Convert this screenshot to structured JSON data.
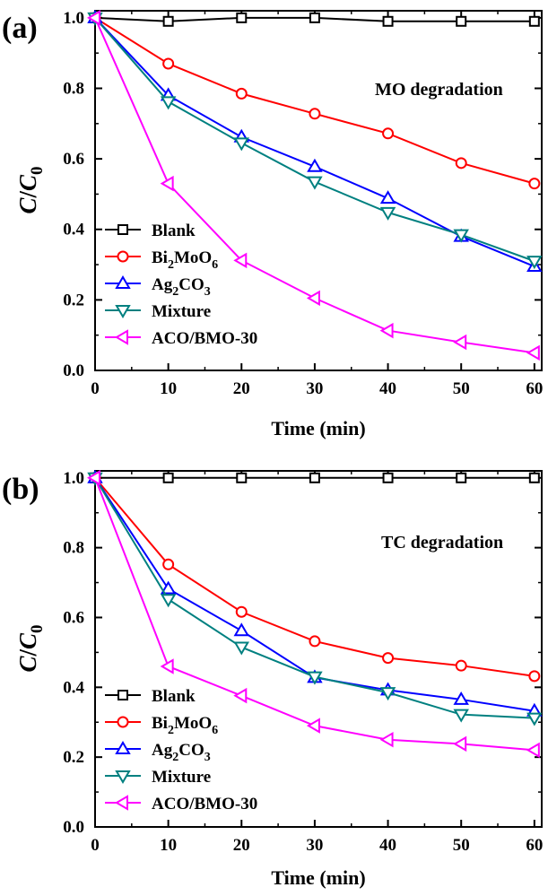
{
  "chart_data": [
    {
      "type": "line",
      "panel_label": "(a)",
      "annotation": "MO degradation",
      "xlabel": "Time (min)",
      "ylabel": {
        "c": "C",
        "slash": "/",
        "c0": "C",
        "sub": "0"
      },
      "x": [
        0,
        10,
        20,
        30,
        40,
        50,
        60
      ],
      "xlim": [
        0,
        61
      ],
      "ylim": [
        0,
        1.02
      ],
      "xticks": [
        0,
        10,
        20,
        30,
        40,
        50,
        60
      ],
      "yticks": [
        "0.0",
        "0.2",
        "0.4",
        "0.6",
        "0.8",
        "1.0"
      ],
      "legend_position": "bottom-left",
      "series": [
        {
          "name": "Blank",
          "label": {
            "main": "Blank"
          },
          "color": "#000000",
          "marker": "square",
          "values": [
            1.0,
            0.99,
            1.0,
            1.0,
            0.99,
            0.99,
            0.99
          ]
        },
        {
          "name": "Bi2MoO6",
          "label": {
            "main": "Bi",
            "s1": "2",
            "m2": "MoO",
            "s2": "6"
          },
          "color": "#ff0000",
          "marker": "circle",
          "values": [
            1.0,
            0.87,
            0.785,
            0.728,
            0.672,
            0.588,
            0.53
          ]
        },
        {
          "name": "Ag2CO3",
          "label": {
            "main": "Ag",
            "s1": "2",
            "m2": "CO",
            "s2": "3"
          },
          "color": "#0000ff",
          "marker": "triangle-up",
          "values": [
            1.0,
            0.78,
            0.662,
            0.578,
            0.488,
            0.38,
            0.295
          ]
        },
        {
          "name": "Mixture",
          "label": {
            "main": "Mixture"
          },
          "color": "#008080",
          "marker": "triangle-down",
          "values": [
            1.0,
            0.762,
            0.645,
            0.535,
            0.448,
            0.385,
            0.31
          ]
        },
        {
          "name": "ACO/BMO-30",
          "label": {
            "main": "ACO/BMO-30"
          },
          "color": "#ff00ff",
          "marker": "triangle-left",
          "values": [
            1.0,
            0.53,
            0.312,
            0.205,
            0.113,
            0.08,
            0.05
          ]
        }
      ]
    },
    {
      "type": "line",
      "panel_label": "(b)",
      "annotation": "TC degradation",
      "xlabel": "Time (min)",
      "ylabel": {
        "c": "C",
        "slash": "/",
        "c0": "C",
        "sub": "0"
      },
      "x": [
        0,
        10,
        20,
        30,
        40,
        50,
        60
      ],
      "xlim": [
        0,
        61
      ],
      "ylim": [
        0,
        1.02
      ],
      "xticks": [
        0,
        10,
        20,
        30,
        40,
        50,
        60
      ],
      "yticks": [
        "0.0",
        "0.2",
        "0.4",
        "0.6",
        "0.8",
        "1.0"
      ],
      "legend_position": "bottom-left",
      "series": [
        {
          "name": "Blank",
          "label": {
            "main": "Blank"
          },
          "color": "#000000",
          "marker": "square",
          "values": [
            1.0,
            1.0,
            1.0,
            1.0,
            1.0,
            1.0,
            1.0
          ]
        },
        {
          "name": "Bi2MoO6",
          "label": {
            "main": "Bi",
            "s1": "2",
            "m2": "MoO",
            "s2": "6"
          },
          "color": "#ff0000",
          "marker": "circle",
          "values": [
            1.0,
            0.752,
            0.616,
            0.532,
            0.484,
            0.462,
            0.432
          ]
        },
        {
          "name": "Ag2CO3",
          "label": {
            "main": "Ag",
            "s1": "2",
            "m2": "CO",
            "s2": "3"
          },
          "color": "#0000ff",
          "marker": "triangle-up",
          "values": [
            1.0,
            0.682,
            0.562,
            0.428,
            0.392,
            0.365,
            0.332
          ]
        },
        {
          "name": "Mixture",
          "label": {
            "main": "Mixture"
          },
          "color": "#008080",
          "marker": "triangle-down",
          "values": [
            1.0,
            0.652,
            0.515,
            0.43,
            0.385,
            0.322,
            0.312
          ]
        },
        {
          "name": "ACO/BMO-30",
          "label": {
            "main": "ACO/BMO-30"
          },
          "color": "#ff00ff",
          "marker": "triangle-left",
          "values": [
            1.0,
            0.46,
            0.376,
            0.29,
            0.25,
            0.238,
            0.22
          ]
        }
      ]
    }
  ]
}
